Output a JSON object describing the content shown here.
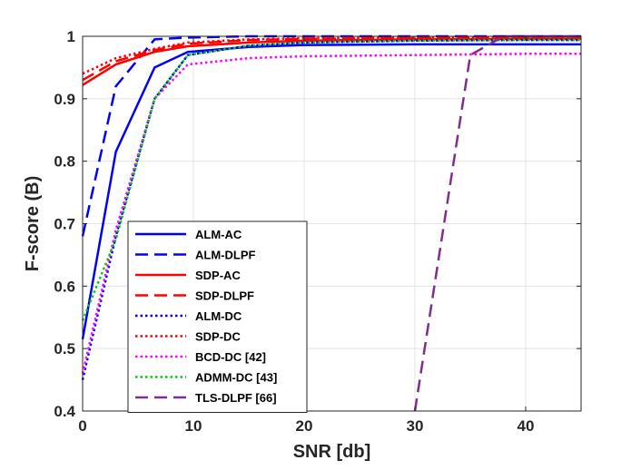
{
  "chart_data": {
    "type": "line",
    "title": "",
    "xlabel": "SNR [db]",
    "ylabel": "F-score (B)",
    "xlim": [
      0,
      45
    ],
    "ylim": [
      0.4,
      1.0
    ],
    "xticks": [
      0,
      10,
      20,
      30,
      40
    ],
    "yticks": [
      0.4,
      0.5,
      0.6,
      0.7,
      0.8,
      0.9,
      1.0
    ],
    "xtick_labels": [
      "0",
      "10",
      "20",
      "30",
      "40"
    ],
    "ytick_labels": [
      "0.4",
      "0.5",
      "0.6",
      "0.7",
      "0.8",
      "0.9",
      "1"
    ],
    "grid": true,
    "legend_position": "bottom-left",
    "series": [
      {
        "name": "ALM-AC",
        "color": "#0000ff",
        "style": "solid",
        "x": [
          0,
          3,
          6.5,
          9.5,
          15,
          20,
          30,
          40,
          45
        ],
        "y": [
          0.515,
          0.815,
          0.95,
          0.975,
          0.983,
          0.986,
          0.987,
          0.987,
          0.987
        ]
      },
      {
        "name": "ALM-DLPF",
        "color": "#0000ff",
        "style": "dashed",
        "x": [
          0,
          3,
          6.5,
          9.5,
          15,
          20,
          30,
          40,
          45
        ],
        "y": [
          0.68,
          0.92,
          0.995,
          0.998,
          1.0,
          1.0,
          1.0,
          1.0,
          1.0
        ]
      },
      {
        "name": "SDP-AC",
        "color": "#ff0000",
        "style": "solid",
        "x": [
          0,
          3,
          6.5,
          9.5,
          15,
          20,
          30,
          40,
          45
        ],
        "y": [
          0.922,
          0.955,
          0.975,
          0.984,
          0.99,
          0.993,
          0.995,
          0.996,
          0.996
        ]
      },
      {
        "name": "SDP-DLPF",
        "color": "#ff0000",
        "style": "dashed",
        "x": [
          0,
          3,
          6.5,
          9.5,
          15,
          20,
          30,
          40,
          45
        ],
        "y": [
          0.93,
          0.96,
          0.978,
          0.988,
          0.994,
          0.996,
          0.997,
          0.998,
          0.998
        ]
      },
      {
        "name": "ALM-DC",
        "color": "#0000ff",
        "style": "dotted",
        "x": [
          0,
          3,
          6.5,
          9.5,
          15,
          20,
          30,
          40,
          45
        ],
        "y": [
          0.45,
          0.68,
          0.9,
          0.97,
          0.985,
          0.99,
          0.993,
          0.994,
          0.994
        ]
      },
      {
        "name": "SDP-DC",
        "color": "#ff0000",
        "style": "dotted",
        "x": [
          0,
          3,
          6.5,
          9.5,
          15,
          20,
          30,
          40,
          45
        ],
        "y": [
          0.94,
          0.965,
          0.98,
          0.99,
          0.995,
          0.997,
          0.998,
          0.999,
          0.999
        ]
      },
      {
        "name": "BCD-DC [42]",
        "color": "#ff00ff",
        "style": "dotted",
        "x": [
          0,
          3,
          6.5,
          9.5,
          15,
          20,
          30,
          40,
          45
        ],
        "y": [
          0.46,
          0.69,
          0.9,
          0.955,
          0.965,
          0.968,
          0.97,
          0.972,
          0.972
        ]
      },
      {
        "name": "ADMM-DC [43]",
        "color": "#00cc00",
        "style": "dotted",
        "x": [
          0,
          3,
          6.5,
          9.5,
          15,
          20,
          30,
          40,
          45
        ],
        "y": [
          0.545,
          0.675,
          0.9,
          0.97,
          0.985,
          0.99,
          0.993,
          0.994,
          0.994
        ]
      },
      {
        "name": "TLS-DLPF  [66]",
        "color": "#7e2f8e",
        "style": "dashed",
        "x": [
          30,
          35,
          38,
          40,
          45
        ],
        "y": [
          0.4,
          0.97,
          1.0,
          1.0,
          1.0
        ]
      }
    ]
  }
}
